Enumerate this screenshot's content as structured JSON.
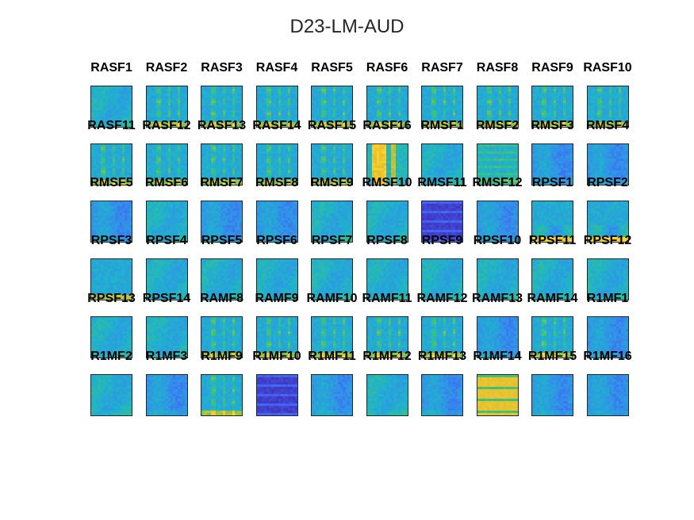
{
  "title": "D23-LM-AUD",
  "colormap": [
    "#3e26a8",
    "#4365f9",
    "#2f96e6",
    "#1fb4c9",
    "#3ec27a",
    "#b2c236",
    "#f9c32e",
    "#f9fb15"
  ],
  "chart_data": {
    "type": "heatmap",
    "title": "D23-LM-AUD",
    "grid": {
      "rows": 6,
      "cols": 10
    },
    "panels": [
      {
        "name": "RASF1",
        "pattern": "smooth"
      },
      {
        "name": "RASF2",
        "pattern": "stripes"
      },
      {
        "name": "RASF3",
        "pattern": "stripes"
      },
      {
        "name": "RASF4",
        "pattern": "stripes"
      },
      {
        "name": "RASF5",
        "pattern": "stripes"
      },
      {
        "name": "RASF6",
        "pattern": "stripes"
      },
      {
        "name": "RASF7",
        "pattern": "stripes"
      },
      {
        "name": "RASF8",
        "pattern": "stripes"
      },
      {
        "name": "RASF9",
        "pattern": "stripes"
      },
      {
        "name": "RASF10",
        "pattern": "stripes"
      },
      {
        "name": "RASF11",
        "pattern": "stripes"
      },
      {
        "name": "RASF12",
        "pattern": "stripes"
      },
      {
        "name": "RASF13",
        "pattern": "stripes"
      },
      {
        "name": "RASF14",
        "pattern": "stripes"
      },
      {
        "name": "RASF15",
        "pattern": "stripes"
      },
      {
        "name": "RASF16",
        "pattern": "bright-stripes"
      },
      {
        "name": "RMSF1",
        "pattern": "smooth"
      },
      {
        "name": "RMSF2",
        "pattern": "rows"
      },
      {
        "name": "RMSF3",
        "pattern": "cool"
      },
      {
        "name": "RMSF4",
        "pattern": "cool"
      },
      {
        "name": "RMSF5",
        "pattern": "cool"
      },
      {
        "name": "RMSF6",
        "pattern": "smooth"
      },
      {
        "name": "RMSF7",
        "pattern": "cool"
      },
      {
        "name": "RMSF8",
        "pattern": "cool"
      },
      {
        "name": "RMSF9",
        "pattern": "smooth"
      },
      {
        "name": "RMSF10",
        "pattern": "smooth"
      },
      {
        "name": "RMSF11",
        "pattern": "dark"
      },
      {
        "name": "RMSF12",
        "pattern": "cool"
      },
      {
        "name": "RPSF1",
        "pattern": "bottom-hot"
      },
      {
        "name": "RPSF2",
        "pattern": "bottom-hot"
      },
      {
        "name": "RPSF3",
        "pattern": "bottom-warm"
      },
      {
        "name": "RPSF4",
        "pattern": "smooth"
      },
      {
        "name": "RPSF5",
        "pattern": "smooth"
      },
      {
        "name": "RPSF6",
        "pattern": "smooth"
      },
      {
        "name": "RPSF7",
        "pattern": "smooth"
      },
      {
        "name": "RPSF8",
        "pattern": "smooth"
      },
      {
        "name": "RPSF9",
        "pattern": "smooth"
      },
      {
        "name": "RPSF10",
        "pattern": "smooth"
      },
      {
        "name": "RPSF11",
        "pattern": "smooth"
      },
      {
        "name": "RPSF12",
        "pattern": "smooth"
      },
      {
        "name": "RPSF13",
        "pattern": "smooth"
      },
      {
        "name": "RPSF14",
        "pattern": "smooth"
      },
      {
        "name": "RAMF8",
        "pattern": "stripes"
      },
      {
        "name": "RAMF9",
        "pattern": "stripes"
      },
      {
        "name": "RAMF10",
        "pattern": "stripes"
      },
      {
        "name": "RAMF11",
        "pattern": "stripes"
      },
      {
        "name": "RAMF12",
        "pattern": "stripes"
      },
      {
        "name": "RAMF13",
        "pattern": "cool"
      },
      {
        "name": "RAMF14",
        "pattern": "stripes"
      },
      {
        "name": "R1MF1",
        "pattern": "cool"
      },
      {
        "name": "R1MF2",
        "pattern": "smooth"
      },
      {
        "name": "R1MF3",
        "pattern": "cool"
      },
      {
        "name": "R1MF9",
        "pattern": "stripes"
      },
      {
        "name": "R1MF10",
        "pattern": "dark"
      },
      {
        "name": "R1MF11",
        "pattern": "cool"
      },
      {
        "name": "R1MF12",
        "pattern": "smooth"
      },
      {
        "name": "R1MF13",
        "pattern": "cool"
      },
      {
        "name": "R1MF14",
        "pattern": "bright"
      },
      {
        "name": "R1MF15",
        "pattern": "cool"
      },
      {
        "name": "R1MF16",
        "pattern": "cool"
      }
    ]
  }
}
